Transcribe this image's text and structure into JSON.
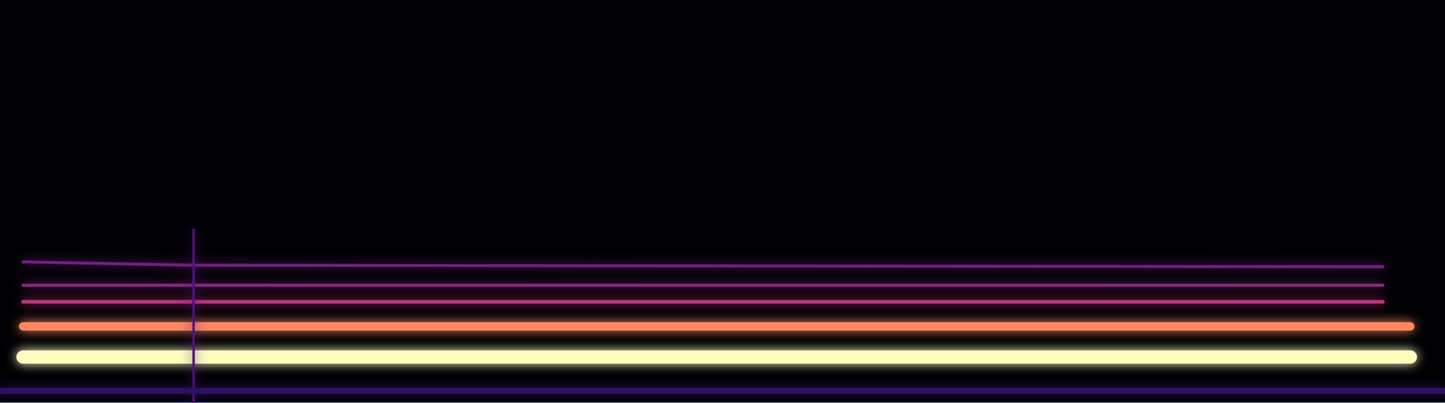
{
  "chart_data": {
    "type": "spectrogram",
    "xlim": [
      0,
      100
    ],
    "ylim": [
      0,
      100
    ],
    "tick_labels": false,
    "grid": false,
    "series": [
      {
        "x": [
          0,
          100
        ],
        "values": [
          3,
          3
        ],
        "color": "#2c115f"
      },
      {
        "x": [
          13.4,
          13.4
        ],
        "values": [
          0,
          43
        ],
        "color": "#51127c"
      },
      {
        "x": [
          1.6,
          97.6
        ],
        "values": [
          11.4,
          11.4
        ],
        "color": "#fcfdbf"
      },
      {
        "x": [
          1.6,
          97.6
        ],
        "values": [
          19.0,
          19.0
        ],
        "color": "#fb8861"
      },
      {
        "x": [
          1.6,
          95.7
        ],
        "values": [
          25.1,
          25.1
        ],
        "color": "#b73779"
      },
      {
        "x": [
          1.6,
          95.7
        ],
        "values": [
          29.2,
          29.2
        ],
        "color": "#8c2981"
      },
      {
        "x": [
          1.6,
          13.4,
          95.7
        ],
        "values": [
          35.0,
          34.2,
          33.8
        ],
        "color": "#721f81"
      }
    ]
  }
}
